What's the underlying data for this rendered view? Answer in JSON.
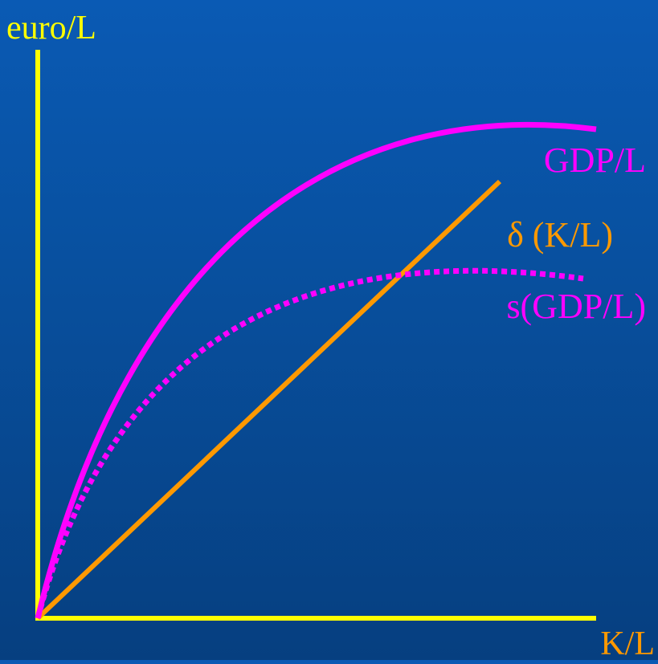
{
  "labels": {
    "y_axis": "euro/L",
    "x_axis": "K/L",
    "gdp_curve": "GDP/L",
    "depreciation_line": "δ (K/L)",
    "savings_curve": "s(GDP/L)"
  },
  "colors": {
    "axis": "#ffff00",
    "gdp_curve": "#ff00ff",
    "savings_curve": "#ff00ff",
    "depreciation_line": "#ff9900",
    "background": "#0a56ab"
  },
  "line_styles": {
    "gdp_curve": "solid",
    "savings_curve": "dotted",
    "depreciation_line": "solid"
  }
}
